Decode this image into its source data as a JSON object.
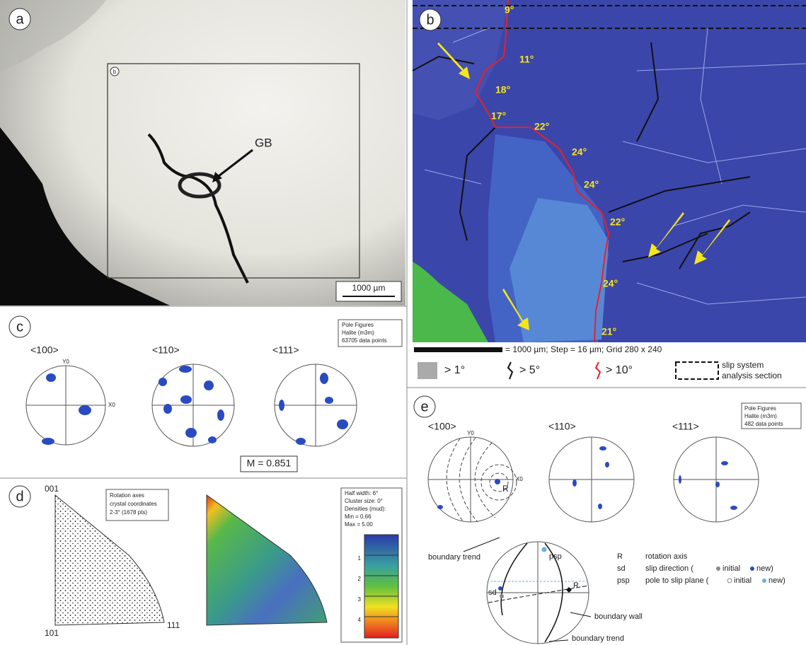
{
  "panel_a": {
    "label": "a",
    "inset_label": "b",
    "gb": "GB",
    "scale": "1000 µm"
  },
  "panel_b": {
    "label": "b",
    "angles": [
      "9°",
      "11°",
      "18°",
      "17°",
      "22°",
      "24°",
      "24°",
      "22°",
      "24°",
      "21°"
    ],
    "scale_text": "= 1000 µm; Step = 16 µm; Grid 280 x 240",
    "legend": [
      "> 1°",
      "> 5°",
      "> 10°"
    ],
    "section": [
      "slip system",
      "analysis section"
    ]
  },
  "panel_c": {
    "label": "c",
    "figures": [
      "<100>",
      "<110>",
      "<111>"
    ],
    "y_axis": "Y0",
    "x_axis": "X0",
    "info": [
      "Pole Figures",
      "Halite (m3m)",
      "63705 data points"
    ],
    "m_index": "M = 0.851"
  },
  "panel_d": {
    "label": "d",
    "corners": [
      "001",
      "101",
      "111"
    ],
    "info": [
      "Rotation axes",
      "crystal coordinates",
      "2-3° (1678 pts)"
    ],
    "density": [
      "Half width: 6°",
      "Cluster size: 0°",
      "Densities (mud):",
      "Min = 0.66",
      "Max = 5.00"
    ],
    "colorbar_ticks": [
      "1",
      "2",
      "3",
      "4"
    ]
  },
  "panel_e": {
    "label": "e",
    "figures": [
      "<100>",
      "<110>",
      "<111>"
    ],
    "y_axis": "Y0",
    "x_axis": "X0",
    "rotation": "R",
    "info": [
      "Pole Figures",
      "Halite (m3m)",
      "482 data points"
    ],
    "annotations": [
      "boundary trend",
      "psp",
      "sd",
      "R",
      "boundary wall",
      "boundary trend"
    ],
    "legend": [
      [
        "R",
        "rotation axis"
      ],
      [
        "sd",
        "slip direction (",
        "initial",
        "new)"
      ],
      [
        "psp",
        "pole to slip plane (",
        "initial",
        "new)"
      ]
    ]
  }
}
